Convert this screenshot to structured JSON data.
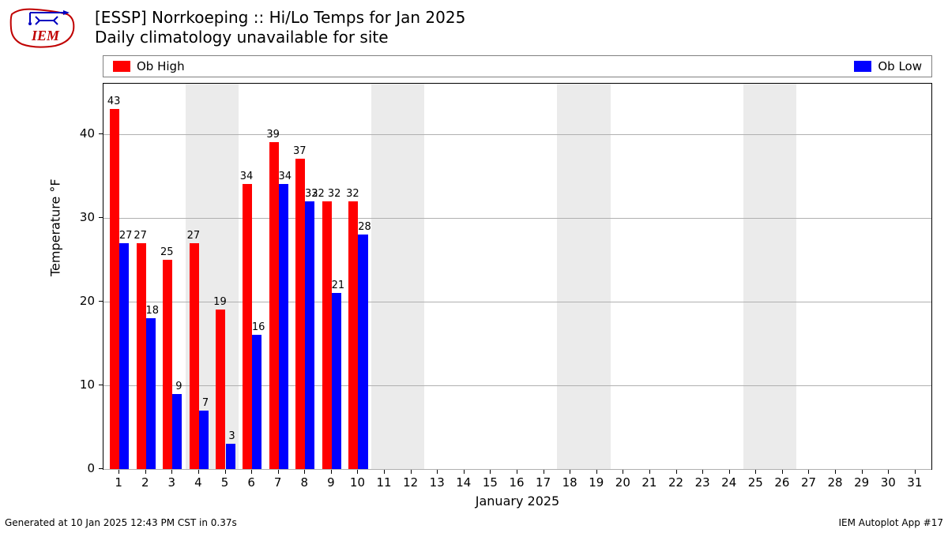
{
  "title_line1": "[ESSP] Norrkoeping :: Hi/Lo Temps for Jan 2025",
  "title_line2": "Daily climatology unavailable for site",
  "legend": {
    "high_label": "Ob High",
    "high_color": "#ff0000",
    "low_label": "Ob Low",
    "low_color": "#0000ff"
  },
  "chart": {
    "type": "bar",
    "ylabel": "Temperature °F",
    "xlabel": "January 2025",
    "ylim": [
      0,
      46
    ],
    "yticks": [
      0,
      10,
      20,
      30,
      40
    ],
    "xlim": [
      0.4,
      31.6
    ],
    "xticks": [
      1,
      2,
      3,
      4,
      5,
      6,
      7,
      8,
      9,
      10,
      11,
      12,
      13,
      14,
      15,
      16,
      17,
      18,
      19,
      20,
      21,
      22,
      23,
      24,
      25,
      26,
      27,
      28,
      29,
      30,
      31
    ],
    "grid_color": "#b0b0b0",
    "background_color": "#ffffff",
    "weekend_band_color": "#ebebeb",
    "weekend_ranges": [
      [
        3.5,
        5.5
      ],
      [
        10.5,
        12.5
      ],
      [
        17.5,
        19.5
      ],
      [
        24.5,
        26.5
      ]
    ],
    "bar_width": 0.36,
    "high_color": "#ff0000",
    "low_color": "#0000ff",
    "days": [
      1,
      2,
      3,
      4,
      5,
      6,
      7,
      8,
      9,
      10
    ],
    "highs": [
      43,
      27,
      25,
      27,
      19,
      34,
      39,
      37,
      32,
      32
    ],
    "lows": [
      27,
      18,
      9,
      7,
      3,
      16,
      34,
      32,
      21,
      28
    ],
    "high_label_extra": {
      "9": "32"
    }
  },
  "footer_left": "Generated at 10 Jan 2025 12:43 PM CST in 0.37s",
  "footer_right": "IEM Autoplot App #17"
}
